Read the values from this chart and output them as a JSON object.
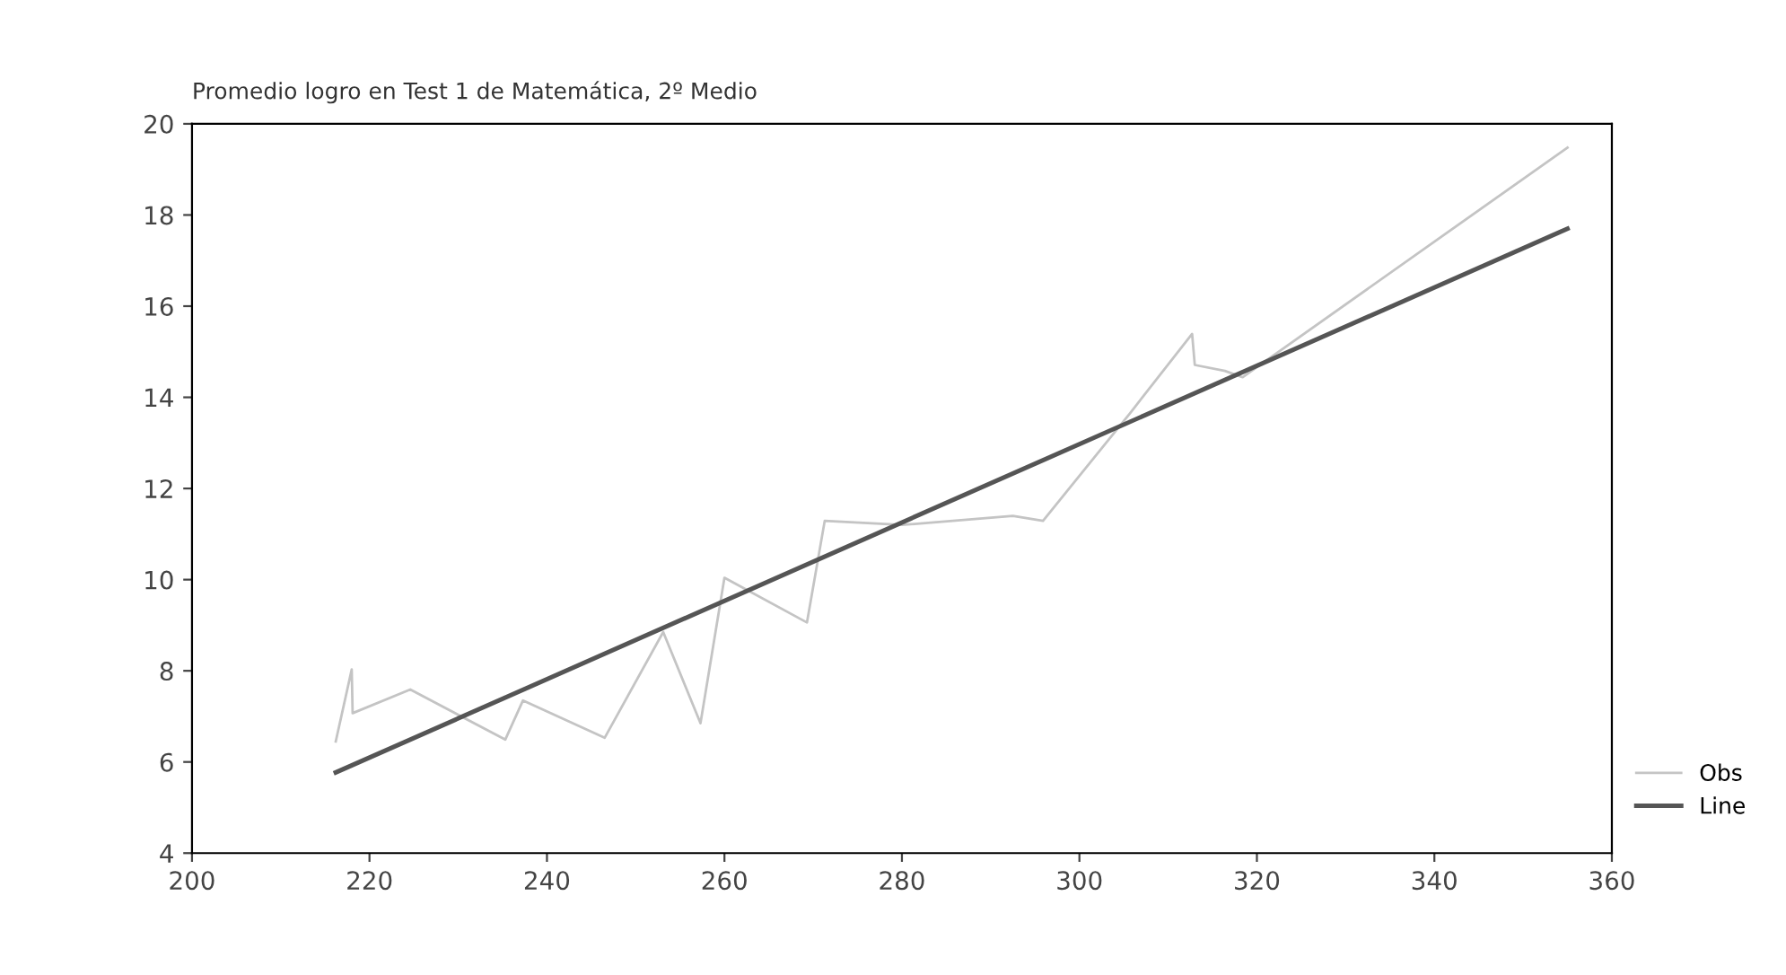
{
  "chart_data": {
    "type": "line",
    "title": "Promedio logro en Test 1 de Matemática, 2º Medio",
    "xlim": [
      200,
      360
    ],
    "xticks": [
      200,
      220,
      240,
      260,
      280,
      300,
      320,
      340,
      360
    ],
    "ylim": [
      4,
      20
    ],
    "yticks": [
      4,
      6,
      8,
      10,
      12,
      14,
      16,
      18,
      20
    ],
    "grid": false,
    "legend": "right",
    "marker": "none",
    "series": [
      {
        "name": "Obs",
        "color": "#c4c4c4",
        "x": [
          216.2,
          218.0,
          218.1,
          224.6,
          235.3,
          237.3,
          246.5,
          253.1,
          257.3,
          260.0,
          269.3,
          271.3,
          280.0,
          292.5,
          295.9,
          305.7,
          312.7,
          313.0,
          316.4,
          318.4,
          355.0
        ],
        "values": [
          6.45,
          8.03,
          7.07,
          7.59,
          6.49,
          7.35,
          6.53,
          8.85,
          6.85,
          10.04,
          9.06,
          11.29,
          11.2,
          11.4,
          11.29,
          13.65,
          15.39,
          14.71,
          14.58,
          14.44,
          19.48
        ]
      },
      {
        "name": "Line",
        "color": "#555555",
        "x": [
          216.2,
          355.0
        ],
        "values": [
          5.77,
          17.7
        ]
      }
    ]
  }
}
